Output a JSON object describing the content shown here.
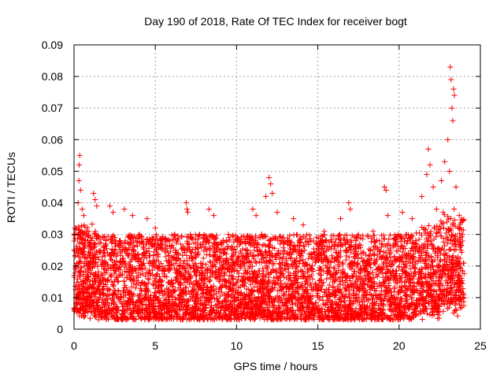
{
  "chart_data": {
    "type": "scatter",
    "title": "Day 190 of 2018, Rate Of TEC Index for receiver bogt",
    "xlabel": "GPS time / hours",
    "ylabel": "ROTI / TECUs",
    "xlim": [
      0,
      25
    ],
    "ylim": [
      0,
      0.09
    ],
    "x_ticks": [
      "0",
      "5",
      "10",
      "15",
      "20",
      "25"
    ],
    "x_tick_values": [
      0,
      5,
      10,
      15,
      20,
      25
    ],
    "y_ticks": [
      "0",
      "0.01",
      "0.02",
      "0.03",
      "0.04",
      "0.05",
      "0.06",
      "0.07",
      "0.08",
      "0.09"
    ],
    "y_tick_values": [
      0,
      0.01,
      0.02,
      0.03,
      0.04,
      0.05,
      0.06,
      0.07,
      0.08,
      0.09
    ],
    "grid": true,
    "marker": "plus",
    "series": [
      {
        "name": "ROTI",
        "color": "#ff0000",
        "x_range": [
          0,
          24
        ],
        "typical_range": [
          0.003,
          0.03
        ],
        "points": [
          {
            "x": 0.05,
            "y": 0.03
          },
          {
            "x": 0.15,
            "y": 0.032
          },
          {
            "x": 0.25,
            "y": 0.04
          },
          {
            "x": 0.3,
            "y": 0.047
          },
          {
            "x": 0.32,
            "y": 0.052
          },
          {
            "x": 0.35,
            "y": 0.055
          },
          {
            "x": 0.4,
            "y": 0.044
          },
          {
            "x": 0.5,
            "y": 0.038
          },
          {
            "x": 0.6,
            "y": 0.036
          },
          {
            "x": 1.2,
            "y": 0.043
          },
          {
            "x": 1.3,
            "y": 0.041
          },
          {
            "x": 1.4,
            "y": 0.039
          },
          {
            "x": 2.2,
            "y": 0.039
          },
          {
            "x": 2.4,
            "y": 0.037
          },
          {
            "x": 3.1,
            "y": 0.038
          },
          {
            "x": 3.6,
            "y": 0.036
          },
          {
            "x": 4.5,
            "y": 0.035
          },
          {
            "x": 5.0,
            "y": 0.032
          },
          {
            "x": 6.9,
            "y": 0.04
          },
          {
            "x": 6.95,
            "y": 0.038
          },
          {
            "x": 7.0,
            "y": 0.037
          },
          {
            "x": 8.3,
            "y": 0.038
          },
          {
            "x": 8.6,
            "y": 0.036
          },
          {
            "x": 9.5,
            "y": 0.03
          },
          {
            "x": 11.0,
            "y": 0.038
          },
          {
            "x": 11.2,
            "y": 0.036
          },
          {
            "x": 11.8,
            "y": 0.042
          },
          {
            "x": 12.0,
            "y": 0.048
          },
          {
            "x": 12.1,
            "y": 0.046
          },
          {
            "x": 12.2,
            "y": 0.043
          },
          {
            "x": 12.5,
            "y": 0.037
          },
          {
            "x": 13.5,
            "y": 0.035
          },
          {
            "x": 14.1,
            "y": 0.033
          },
          {
            "x": 15.4,
            "y": 0.031
          },
          {
            "x": 16.4,
            "y": 0.035
          },
          {
            "x": 16.9,
            "y": 0.04
          },
          {
            "x": 17.0,
            "y": 0.038
          },
          {
            "x": 18.4,
            "y": 0.031
          },
          {
            "x": 19.1,
            "y": 0.045
          },
          {
            "x": 19.2,
            "y": 0.044
          },
          {
            "x": 19.3,
            "y": 0.036
          },
          {
            "x": 20.2,
            "y": 0.037
          },
          {
            "x": 20.8,
            "y": 0.035
          },
          {
            "x": 21.4,
            "y": 0.042
          },
          {
            "x": 21.7,
            "y": 0.049
          },
          {
            "x": 21.8,
            "y": 0.057
          },
          {
            "x": 21.9,
            "y": 0.052
          },
          {
            "x": 22.1,
            "y": 0.045
          },
          {
            "x": 22.3,
            "y": 0.038
          },
          {
            "x": 22.6,
            "y": 0.047
          },
          {
            "x": 22.8,
            "y": 0.053
          },
          {
            "x": 23.0,
            "y": 0.06
          },
          {
            "x": 23.1,
            "y": 0.05
          },
          {
            "x": 23.15,
            "y": 0.083
          },
          {
            "x": 23.2,
            "y": 0.079
          },
          {
            "x": 23.25,
            "y": 0.07
          },
          {
            "x": 23.3,
            "y": 0.066
          },
          {
            "x": 23.35,
            "y": 0.076
          },
          {
            "x": 23.4,
            "y": 0.074
          },
          {
            "x": 23.5,
            "y": 0.045
          },
          {
            "x": 23.7,
            "y": 0.036
          },
          {
            "x": 23.9,
            "y": 0.03
          }
        ]
      }
    ]
  }
}
